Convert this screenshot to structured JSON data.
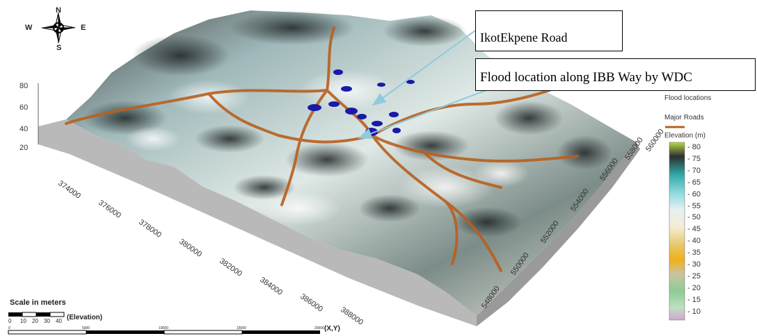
{
  "compass": {
    "north": "N",
    "south": "S",
    "east": "E",
    "west": "W"
  },
  "callouts": {
    "road": "IkotEkpene Road",
    "flood": "Flood location along IBB Way by WDC"
  },
  "legend": {
    "flood_locations": "Flood locations",
    "major_roads": "Major Roads",
    "elevation_title": "Elevation (m)",
    "elevation_ticks": [
      "80",
      "75",
      "70",
      "65",
      "60",
      "55",
      "50",
      "45",
      "40",
      "35",
      "30",
      "25",
      "20",
      "15",
      "10"
    ],
    "colors": [
      "#b5d94a",
      "#3f3f3f",
      "#2fa8a6",
      "#6ecfd6",
      "#bfe7ee",
      "#efeee4",
      "#f3e8c8",
      "#ecd89a",
      "#e2bf3c",
      "#f1b018",
      "#c9c4a0",
      "#b9d7a4",
      "#7fc88c",
      "#a9d9b4",
      "#cfa6cf"
    ]
  },
  "axes": {
    "z_ticks": [
      "80",
      "60",
      "40",
      "20"
    ],
    "x_ticks": [
      "374000",
      "376000",
      "378000",
      "380000",
      "382000",
      "384000",
      "386000",
      "388000"
    ],
    "y_ticks": [
      "548000",
      "550000",
      "552000",
      "554000",
      "556000",
      "558000",
      "560000"
    ]
  },
  "scale": {
    "title": "Scale in meters",
    "elev_ticks": [
      "0",
      "10",
      "20",
      "30",
      "40"
    ],
    "elev_label": "(Elevation)",
    "xy_ticks": [
      "0",
      "5000",
      "10000",
      "15000",
      "20000"
    ],
    "xy_label": "(X,Y)"
  },
  "colors": {
    "road": "#b8601e",
    "flood": "#1a1aa8",
    "arrow": "#8fc9de",
    "terrain_base": "#b9b9b9"
  }
}
